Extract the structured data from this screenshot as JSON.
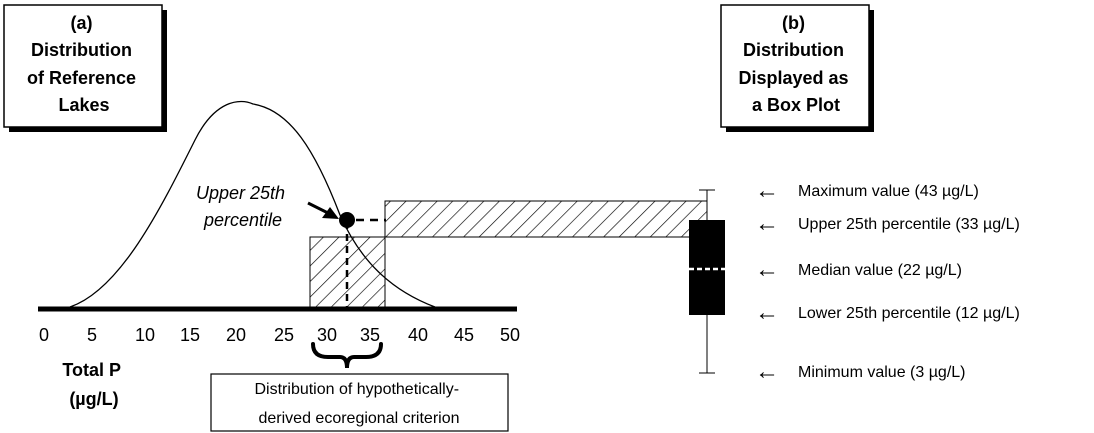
{
  "panel_a": {
    "title_lines": [
      "(a)",
      "Distribution",
      "of Reference",
      "Lakes"
    ],
    "annotation_lines": [
      "Upper 25th",
      "percentile"
    ],
    "axis_ticks": [
      "0",
      "5",
      "10",
      "15",
      "20",
      "25",
      "30",
      "35",
      "40",
      "45",
      "50"
    ],
    "axis_label_lines": [
      "Total P",
      "(µg/L)"
    ],
    "criterion_caption_lines": [
      "Distribution of hypothetically-",
      "derived ecoregional criterion"
    ]
  },
  "panel_b": {
    "title_lines": [
      "(b)",
      "Distribution",
      "Displayed as",
      "a Box Plot"
    ],
    "labels": [
      {
        "arrow": "←",
        "text": "Maximum value (43 µg/L)"
      },
      {
        "arrow": "←",
        "text": "Upper 25th percentile (33 µg/L)"
      },
      {
        "arrow": "←",
        "text": "Median value (22 µg/L)"
      },
      {
        "arrow": "←",
        "text": "Lower 25th percentile  (12 µg/L)"
      },
      {
        "arrow": "←",
        "text": "Minimum value (3 µg/L)"
      }
    ],
    "box_plot": {
      "min": 3,
      "lower_25th": 12,
      "median": 22,
      "upper_25th": 33,
      "max": 43
    }
  }
}
